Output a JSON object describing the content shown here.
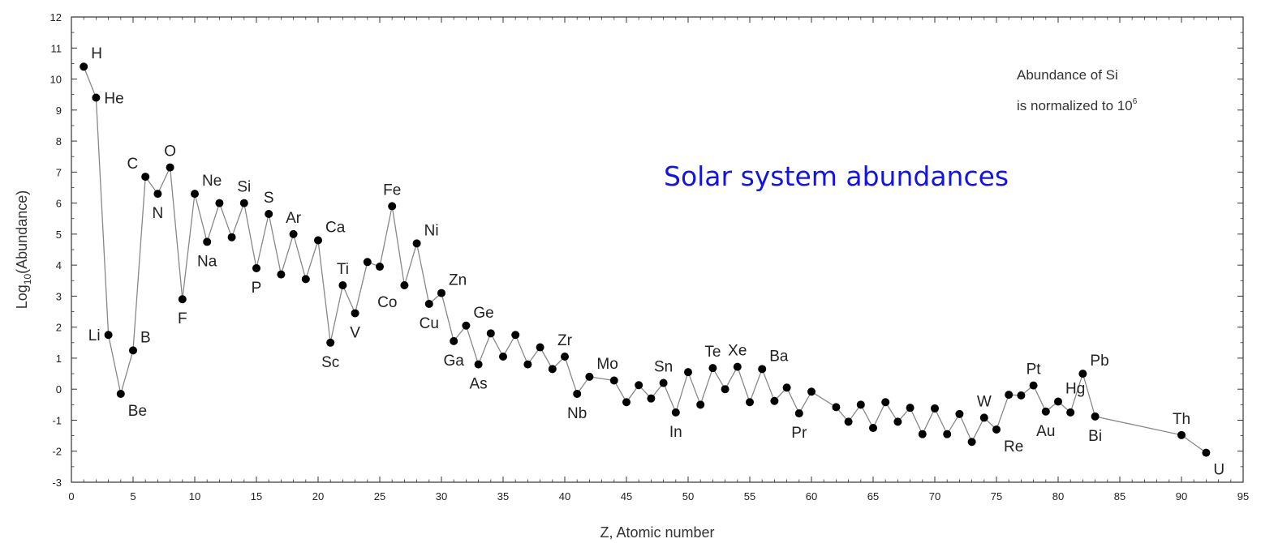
{
  "chart_data": {
    "type": "line",
    "title": "Solar system abundances",
    "xlabel": "Z, Atomic number",
    "ylabel_main": "Log",
    "ylabel_sub": "10",
    "ylabel_rest": "(Abundance)",
    "note_line1": "Abundance of Si",
    "note_line2_main": "is normalized to 10",
    "note_line2_sup": "6",
    "xlim": [
      0,
      95
    ],
    "ylim": [
      -3,
      12
    ],
    "x_ticks": [
      0,
      5,
      10,
      15,
      20,
      25,
      30,
      35,
      40,
      45,
      50,
      55,
      60,
      65,
      70,
      75,
      80,
      85,
      90,
      95
    ],
    "y_ticks": [
      -3,
      -2,
      -1,
      0,
      1,
      2,
      3,
      4,
      5,
      6,
      7,
      8,
      9,
      10,
      11,
      12
    ],
    "x_tick_labels": [
      "0",
      "5",
      "10",
      "15",
      "20",
      "25",
      "30",
      "35",
      "40",
      "45",
      "50",
      "55",
      "60",
      "65",
      "70",
      "75",
      "80",
      "85",
      "90",
      "95"
    ],
    "y_tick_labels": [
      "-3",
      "-2",
      "-1",
      "0",
      "1",
      "2",
      "3",
      "4",
      "5",
      "6",
      "7",
      "8",
      "9",
      "10",
      "11",
      "12"
    ],
    "marker_color": "#000000",
    "line_color": "#888888",
    "series": [
      {
        "points": [
          {
            "z": 1,
            "y": 10.4
          },
          {
            "z": 2,
            "y": 9.4
          },
          {
            "z": 3,
            "y": 1.75
          },
          {
            "z": 4,
            "y": -0.15
          },
          {
            "z": 5,
            "y": 1.25
          },
          {
            "z": 6,
            "y": 6.85
          },
          {
            "z": 7,
            "y": 6.3
          },
          {
            "z": 8,
            "y": 7.15
          },
          {
            "z": 9,
            "y": 2.9
          },
          {
            "z": 10,
            "y": 6.3
          },
          {
            "z": 11,
            "y": 4.75
          },
          {
            "z": 12,
            "y": 6.0
          },
          {
            "z": 13,
            "y": 4.9
          },
          {
            "z": 14,
            "y": 6.0
          },
          {
            "z": 15,
            "y": 3.9
          },
          {
            "z": 16,
            "y": 5.65
          },
          {
            "z": 17,
            "y": 3.7
          },
          {
            "z": 18,
            "y": 5.0
          },
          {
            "z": 19,
            "y": 3.55
          },
          {
            "z": 20,
            "y": 4.8
          },
          {
            "z": 21,
            "y": 1.5
          },
          {
            "z": 22,
            "y": 3.35
          },
          {
            "z": 23,
            "y": 2.45
          },
          {
            "z": 24,
            "y": 4.1
          },
          {
            "z": 25,
            "y": 3.95
          },
          {
            "z": 26,
            "y": 5.9
          },
          {
            "z": 27,
            "y": 3.35
          },
          {
            "z": 28,
            "y": 4.7
          },
          {
            "z": 29,
            "y": 2.75
          },
          {
            "z": 30,
            "y": 3.1
          },
          {
            "z": 31,
            "y": 1.55
          },
          {
            "z": 32,
            "y": 2.05
          },
          {
            "z": 33,
            "y": 0.8
          },
          {
            "z": 34,
            "y": 1.8
          },
          {
            "z": 35,
            "y": 1.05
          },
          {
            "z": 36,
            "y": 1.75
          },
          {
            "z": 37,
            "y": 0.8
          },
          {
            "z": 38,
            "y": 1.35
          },
          {
            "z": 39,
            "y": 0.65
          },
          {
            "z": 40,
            "y": 1.05
          },
          {
            "z": 41,
            "y": -0.15
          },
          {
            "z": 42,
            "y": 0.4
          },
          {
            "z": 44,
            "y": 0.28
          },
          {
            "z": 45,
            "y": -0.42
          },
          {
            "z": 46,
            "y": 0.13
          },
          {
            "z": 47,
            "y": -0.3
          },
          {
            "z": 48,
            "y": 0.2
          },
          {
            "z": 49,
            "y": -0.75
          },
          {
            "z": 50,
            "y": 0.55
          },
          {
            "z": 51,
            "y": -0.5
          },
          {
            "z": 52,
            "y": 0.68
          },
          {
            "z": 53,
            "y": 0.0
          },
          {
            "z": 54,
            "y": 0.72
          },
          {
            "z": 55,
            "y": -0.42
          },
          {
            "z": 56,
            "y": 0.65
          },
          {
            "z": 57,
            "y": -0.38
          },
          {
            "z": 58,
            "y": 0.05
          },
          {
            "z": 59,
            "y": -0.78
          },
          {
            "z": 60,
            "y": -0.08
          },
          {
            "z": 62,
            "y": -0.58
          },
          {
            "z": 63,
            "y": -1.05
          },
          {
            "z": 64,
            "y": -0.5
          },
          {
            "z": 65,
            "y": -1.25
          },
          {
            "z": 66,
            "y": -0.42
          },
          {
            "z": 67,
            "y": -1.05
          },
          {
            "z": 68,
            "y": -0.6
          },
          {
            "z": 69,
            "y": -1.45
          },
          {
            "z": 70,
            "y": -0.62
          },
          {
            "z": 71,
            "y": -1.45
          },
          {
            "z": 72,
            "y": -0.8
          },
          {
            "z": 73,
            "y": -1.7
          },
          {
            "z": 74,
            "y": -0.92
          },
          {
            "z": 75,
            "y": -1.3
          },
          {
            "z": 76,
            "y": -0.18
          },
          {
            "z": 77,
            "y": -0.2
          },
          {
            "z": 78,
            "y": 0.12
          },
          {
            "z": 79,
            "y": -0.72
          },
          {
            "z": 80,
            "y": -0.4
          },
          {
            "z": 81,
            "y": -0.75
          },
          {
            "z": 82,
            "y": 0.5
          },
          {
            "z": 83,
            "y": -0.88
          },
          {
            "z": 90,
            "y": -1.48
          },
          {
            "z": 92,
            "y": -2.05
          }
        ]
      }
    ],
    "element_labels": [
      {
        "text": "H",
        "z": 1,
        "y": 10.4,
        "pos": "NE"
      },
      {
        "text": "He",
        "z": 2,
        "y": 9.4,
        "pos": "E"
      },
      {
        "text": "Li",
        "z": 3,
        "y": 1.75,
        "pos": "W"
      },
      {
        "text": "Be",
        "z": 4,
        "y": -0.15,
        "pos": "SE"
      },
      {
        "text": "B",
        "z": 5,
        "y": 1.25,
        "pos": "NE"
      },
      {
        "text": "C",
        "z": 6,
        "y": 6.85,
        "pos": "NW"
      },
      {
        "text": "N",
        "z": 7,
        "y": 6.3,
        "pos": "S"
      },
      {
        "text": "O",
        "z": 8,
        "y": 7.15,
        "pos": "N"
      },
      {
        "text": "F",
        "z": 9,
        "y": 2.9,
        "pos": "S"
      },
      {
        "text": "Ne",
        "z": 10,
        "y": 6.3,
        "pos": "NE"
      },
      {
        "text": "Na",
        "z": 11,
        "y": 4.75,
        "pos": "S"
      },
      {
        "text": "Si",
        "z": 14,
        "y": 6.0,
        "pos": "N"
      },
      {
        "text": "P",
        "z": 15,
        "y": 3.9,
        "pos": "S"
      },
      {
        "text": "S",
        "z": 16,
        "y": 5.65,
        "pos": "N"
      },
      {
        "text": "Ar",
        "z": 18,
        "y": 5.0,
        "pos": "N"
      },
      {
        "text": "Ca",
        "z": 20,
        "y": 4.8,
        "pos": "NE"
      },
      {
        "text": "Sc",
        "z": 21,
        "y": 1.5,
        "pos": "S"
      },
      {
        "text": "Ti",
        "z": 22,
        "y": 3.35,
        "pos": "N"
      },
      {
        "text": "V",
        "z": 23,
        "y": 2.45,
        "pos": "S"
      },
      {
        "text": "Fe",
        "z": 26,
        "y": 5.9,
        "pos": "N"
      },
      {
        "text": "Co",
        "z": 27,
        "y": 3.35,
        "pos": "SW"
      },
      {
        "text": "Ni",
        "z": 28,
        "y": 4.7,
        "pos": "NE"
      },
      {
        "text": "Cu",
        "z": 29,
        "y": 2.75,
        "pos": "S"
      },
      {
        "text": "Zn",
        "z": 30,
        "y": 3.1,
        "pos": "NE"
      },
      {
        "text": "Ga",
        "z": 31,
        "y": 1.55,
        "pos": "S"
      },
      {
        "text": "Ge",
        "z": 32,
        "y": 2.05,
        "pos": "NE"
      },
      {
        "text": "As",
        "z": 33,
        "y": 0.8,
        "pos": "S"
      },
      {
        "text": "Zr",
        "z": 40,
        "y": 1.05,
        "pos": "N"
      },
      {
        "text": "Nb",
        "z": 41,
        "y": -0.15,
        "pos": "S"
      },
      {
        "text": "Mo",
        "z": 42,
        "y": 0.4,
        "pos": "NE"
      },
      {
        "text": "Sn",
        "z": 48,
        "y": 0.2,
        "pos": "N"
      },
      {
        "text": "In",
        "z": 49,
        "y": -0.75,
        "pos": "S"
      },
      {
        "text": "Te",
        "z": 52,
        "y": 0.68,
        "pos": "N"
      },
      {
        "text": "Xe",
        "z": 54,
        "y": 0.72,
        "pos": "N"
      },
      {
        "text": "Ba",
        "z": 56,
        "y": 0.65,
        "pos": "NE"
      },
      {
        "text": "Pr",
        "z": 59,
        "y": -0.78,
        "pos": "S"
      },
      {
        "text": "W",
        "z": 74,
        "y": -0.92,
        "pos": "N"
      },
      {
        "text": "Re",
        "z": 75,
        "y": -1.3,
        "pos": "SE"
      },
      {
        "text": "Pt",
        "z": 78,
        "y": 0.12,
        "pos": "N"
      },
      {
        "text": "Au",
        "z": 79,
        "y": -0.72,
        "pos": "S"
      },
      {
        "text": "Hg",
        "z": 80,
        "y": -0.4,
        "pos": "NE"
      },
      {
        "text": "Pb",
        "z": 82,
        "y": 0.5,
        "pos": "NE"
      },
      {
        "text": "Bi",
        "z": 83,
        "y": -0.88,
        "pos": "S"
      },
      {
        "text": "Th",
        "z": 90,
        "y": -1.48,
        "pos": "N"
      },
      {
        "text": "U",
        "z": 92,
        "y": -2.05,
        "pos": "SE"
      }
    ],
    "grid": false,
    "legend": "none"
  }
}
